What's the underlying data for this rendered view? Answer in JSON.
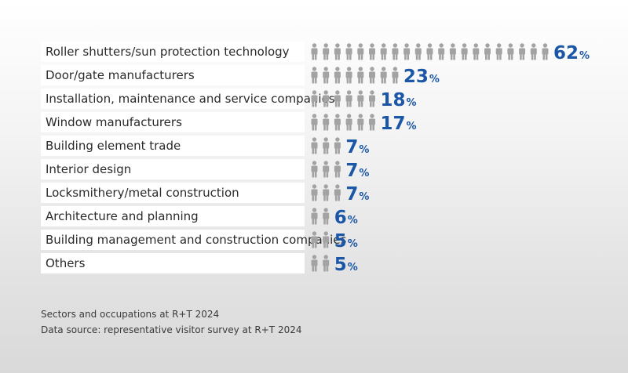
{
  "chart_data": {
    "type": "bar",
    "categories": [
      "Roller shutters/sun protection technology",
      "Door/gate manufacturers",
      "Installation, maintenance and service companies",
      "Window manufacturers",
      "Building element trade",
      "Interior design",
      "Locksmithery/metal construction",
      "Architecture and planning",
      "Building management and construction companies",
      "Others"
    ],
    "values": [
      62,
      23,
      18,
      17,
      7,
      7,
      7,
      6,
      5,
      5
    ],
    "value_suffix": "%",
    "icons_per_row": [
      21,
      8,
      6,
      6,
      3,
      3,
      3,
      2,
      2,
      2
    ],
    "icon": "person-icon",
    "title": "",
    "xlabel": "",
    "ylabel": "",
    "colors": {
      "value_text": "#1b57a6",
      "icon": "#a3a3a3",
      "row_background": "#ffffff"
    }
  },
  "footer": {
    "line1": "Sectors and occupations at R+T 2024",
    "line2": "Data source: representative visitor survey at R+T 2024"
  }
}
